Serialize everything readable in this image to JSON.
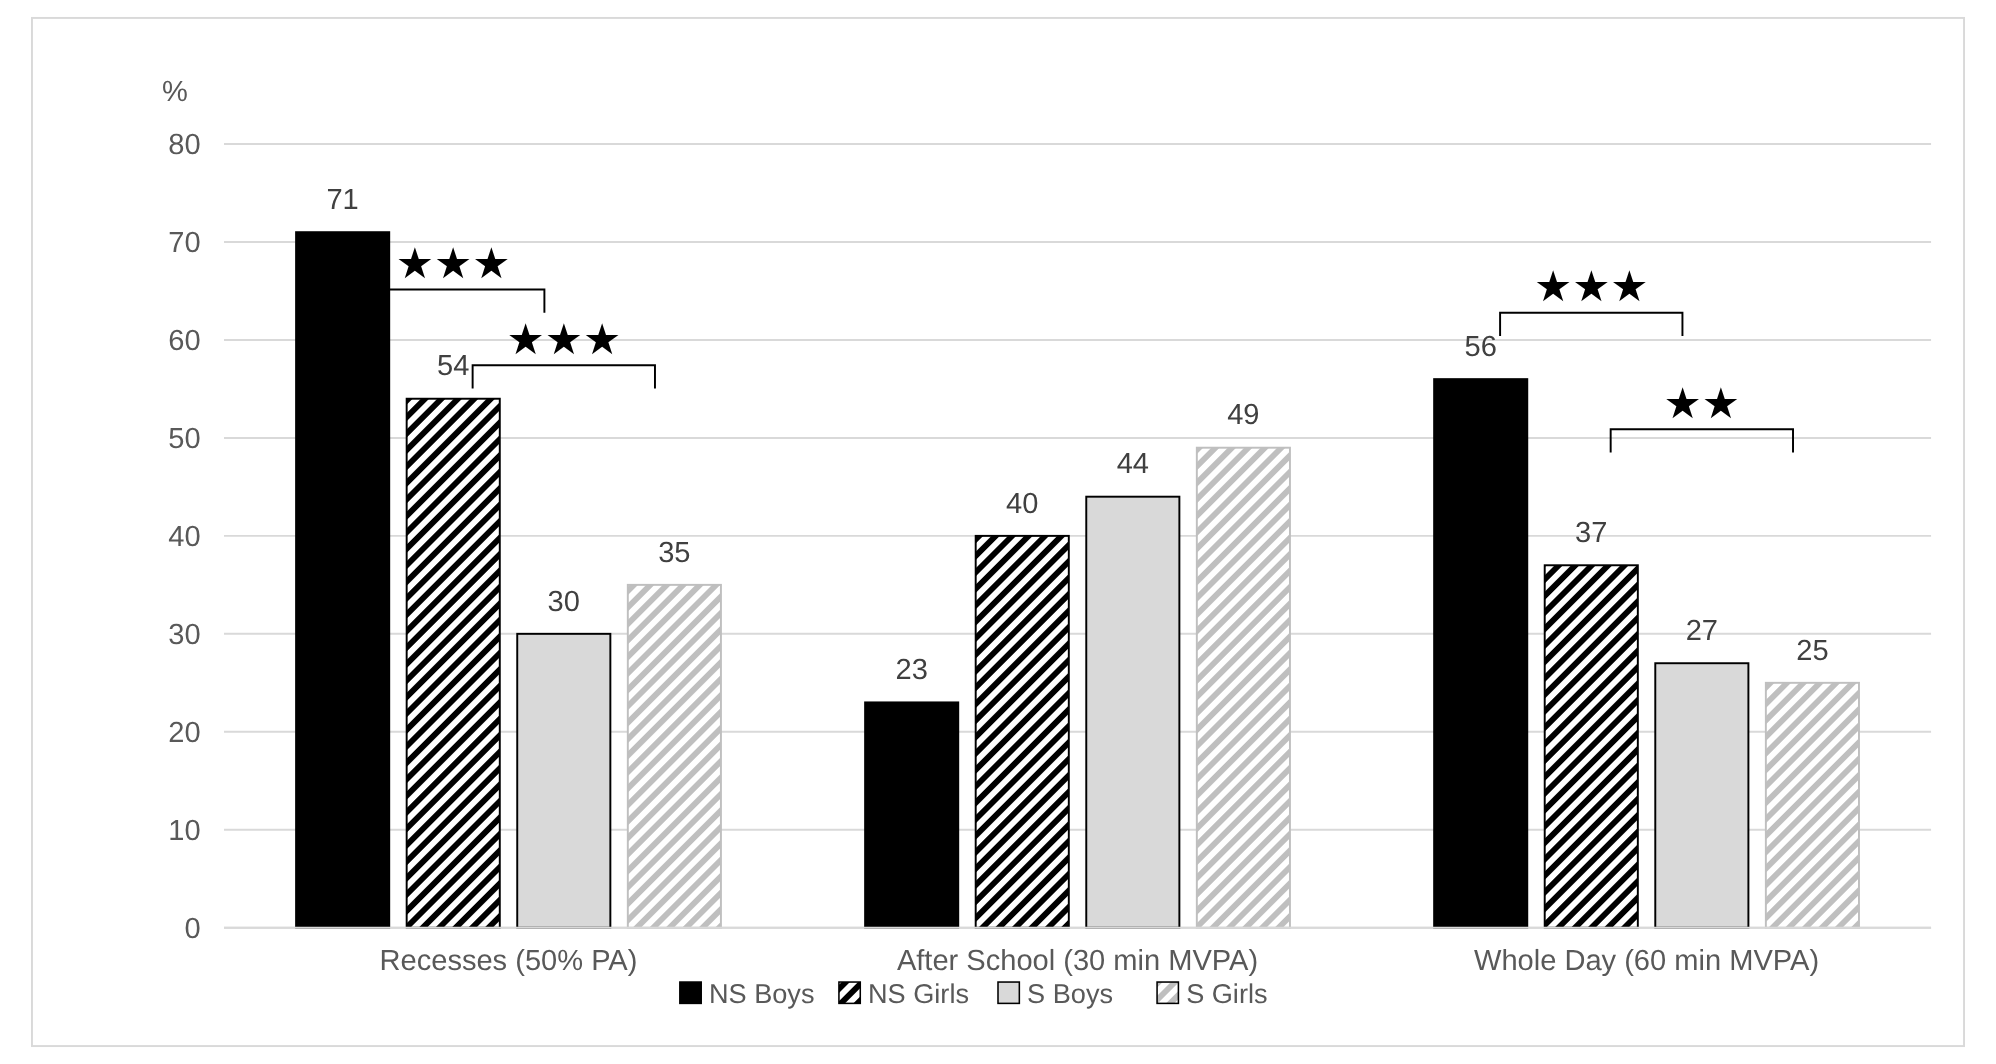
{
  "chart_data": {
    "type": "bar",
    "ylabel": "%",
    "categories": [
      "Recesses (50% PA)",
      "After School (30 min MVPA)",
      "Whole Day (60 min MVPA)"
    ],
    "series": [
      {
        "name": "NS Boys",
        "color": "#000000",
        "values": [
          71,
          23,
          56
        ]
      },
      {
        "name": "NS Girls",
        "color": "#000000",
        "values": [
          54,
          40,
          37
        ]
      },
      {
        "name": "S Boys",
        "color": "#d9d9d9",
        "values": [
          30,
          44,
          27
        ]
      },
      {
        "name": "S Girls",
        "color": "#bfbfbf",
        "values": [
          35,
          49,
          25
        ]
      }
    ],
    "ylim": [
      0,
      80
    ],
    "yticks": [
      0,
      10,
      20,
      30,
      40,
      50,
      60,
      70,
      80
    ],
    "grid": "y",
    "data_labels": true,
    "legend": "bottom",
    "annotations": [
      "★★★",
      "★★★",
      "★★★",
      "★★"
    ]
  }
}
